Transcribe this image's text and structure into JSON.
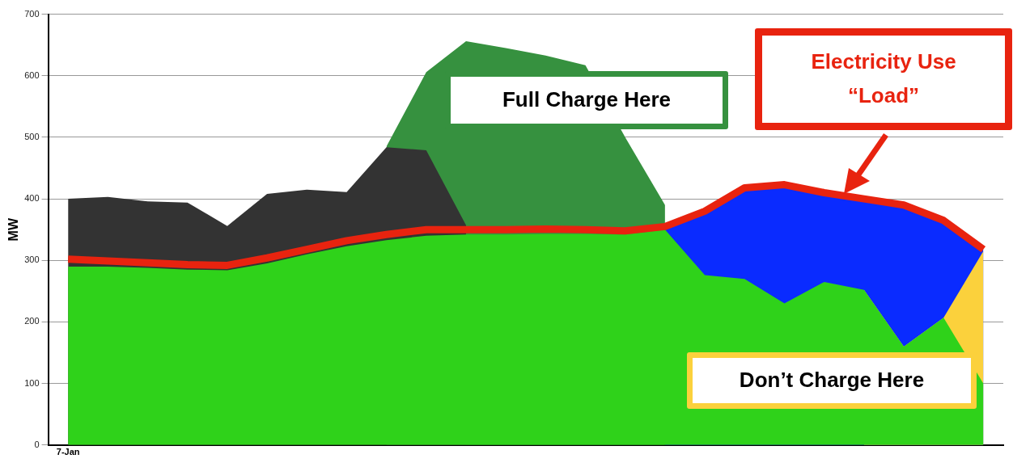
{
  "chart_data": {
    "type": "area",
    "ylabel": "MW",
    "categories": [
      "7-Jan",
      null,
      null,
      null,
      null,
      null,
      null,
      null,
      null,
      null,
      null,
      null,
      null,
      null,
      null,
      null,
      null,
      null,
      null,
      null,
      null,
      null,
      null,
      null
    ],
    "ylim": [
      0,
      700
    ],
    "yticks": [
      0,
      100,
      200,
      300,
      400,
      500,
      600,
      700
    ],
    "grid": "y",
    "legend": false,
    "series": [
      {
        "color": "#36913f",
        "values": [
          null,
          null,
          null,
          null,
          null,
          null,
          null,
          null,
          485,
          606,
          656,
          645,
          633,
          617,
          500,
          390,
          null,
          null,
          null,
          null,
          null,
          null,
          null,
          null
        ]
      },
      {
        "color": "#333333",
        "values": [
          400,
          403,
          396,
          394,
          356,
          408,
          415,
          411,
          484,
          479,
          357,
          null,
          null,
          null,
          null,
          null,
          null,
          null,
          null,
          null,
          null,
          null,
          null,
          null
        ]
      },
      {
        "color": "#0a2bff",
        "values": [
          null,
          null,
          null,
          null,
          null,
          null,
          null,
          null,
          null,
          null,
          null,
          null,
          null,
          null,
          null,
          355,
          380,
          418,
          423,
          410,
          400,
          390,
          365,
          318
        ]
      },
      {
        "color": "#fbd13c",
        "values": [
          null,
          null,
          null,
          null,
          null,
          null,
          null,
          null,
          null,
          null,
          null,
          null,
          null,
          null,
          null,
          null,
          null,
          null,
          null,
          null,
          252,
          160,
          207,
          315
        ]
      },
      {
        "color": "#2fd21a",
        "values": [
          290,
          290,
          288,
          285,
          284,
          295,
          310,
          323,
          333,
          340,
          342,
          342,
          343,
          343,
          342,
          350,
          276,
          270,
          230,
          265,
          252,
          160,
          207,
          100
        ]
      },
      {
        "type": "line",
        "color": "#e8230f",
        "values": [
          302,
          299,
          296,
          293,
          292,
          304,
          318,
          332,
          342,
          350,
          350,
          350,
          351,
          350,
          348,
          355,
          380,
          418,
          423,
          410,
          400,
          390,
          365,
          318
        ]
      }
    ],
    "annotations": [
      "Full Charge Here",
      "Electricity Use “Load”",
      "Don’t Charge Here"
    ]
  }
}
